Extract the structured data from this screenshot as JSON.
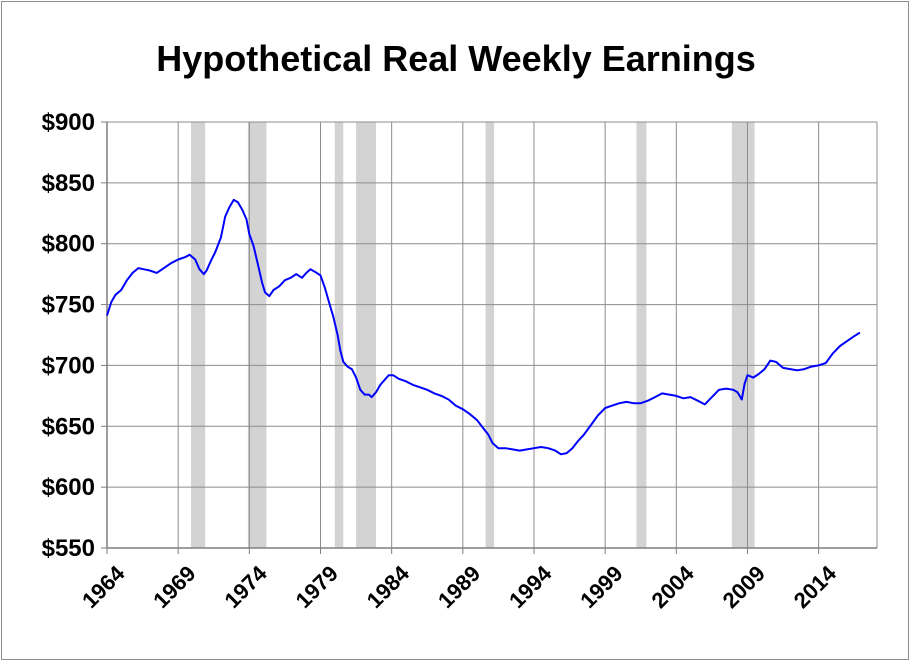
{
  "chart_data": {
    "type": "line",
    "title": "Hypothetical Real Weekly Earnings",
    "xlabel": "",
    "ylabel": "",
    "xlim": [
      1964,
      2018.1
    ],
    "ylim": [
      550,
      900
    ],
    "x_ticks": [
      1964,
      1969,
      1974,
      1979,
      1984,
      1989,
      1994,
      1999,
      2004,
      2009,
      2014
    ],
    "y_ticks": [
      {
        "value": 550,
        "label": "$550"
      },
      {
        "value": 600,
        "label": "$600"
      },
      {
        "value": 650,
        "label": "$650"
      },
      {
        "value": 700,
        "label": "$700"
      },
      {
        "value": 750,
        "label": "$750"
      },
      {
        "value": 800,
        "label": "$800"
      },
      {
        "value": 850,
        "label": "$850"
      },
      {
        "value": 900,
        "label": "$900"
      }
    ],
    "grid": true,
    "line_color": "#0000ff",
    "recession_color": "#d3d3d3",
    "recessions": [
      [
        1969.9,
        1970.9
      ],
      [
        1973.9,
        1975.2
      ],
      [
        1980.0,
        1980.6
      ],
      [
        1981.5,
        1982.9
      ],
      [
        1990.6,
        1991.2
      ],
      [
        2001.2,
        2001.9
      ],
      [
        2007.9,
        2009.5
      ]
    ],
    "series": [
      {
        "values": [
          [
            1964.0,
            741
          ],
          [
            1964.3,
            752
          ],
          [
            1964.6,
            758
          ],
          [
            1965.0,
            762
          ],
          [
            1965.4,
            770
          ],
          [
            1965.8,
            776
          ],
          [
            1966.2,
            780
          ],
          [
            1966.6,
            779
          ],
          [
            1967.0,
            778
          ],
          [
            1967.5,
            776
          ],
          [
            1968.0,
            780
          ],
          [
            1968.5,
            784
          ],
          [
            1969.0,
            787
          ],
          [
            1969.5,
            789
          ],
          [
            1969.8,
            791
          ],
          [
            1970.2,
            787
          ],
          [
            1970.5,
            779
          ],
          [
            1970.8,
            775
          ],
          [
            1971.0,
            778
          ],
          [
            1971.3,
            786
          ],
          [
            1971.6,
            793
          ],
          [
            1972.0,
            805
          ],
          [
            1972.3,
            822
          ],
          [
            1972.6,
            830
          ],
          [
            1972.9,
            836
          ],
          [
            1973.2,
            834
          ],
          [
            1973.5,
            828
          ],
          [
            1973.8,
            820
          ],
          [
            1974.0,
            808
          ],
          [
            1974.3,
            798
          ],
          [
            1974.6,
            783
          ],
          [
            1974.9,
            768
          ],
          [
            1975.1,
            760
          ],
          [
            1975.4,
            757
          ],
          [
            1975.7,
            762
          ],
          [
            1976.1,
            765
          ],
          [
            1976.5,
            770
          ],
          [
            1976.9,
            772
          ],
          [
            1977.3,
            775
          ],
          [
            1977.7,
            772
          ],
          [
            1978.0,
            776
          ],
          [
            1978.3,
            779
          ],
          [
            1978.6,
            777
          ],
          [
            1979.0,
            774
          ],
          [
            1979.3,
            764
          ],
          [
            1979.6,
            752
          ],
          [
            1979.9,
            740
          ],
          [
            1980.2,
            725
          ],
          [
            1980.4,
            712
          ],
          [
            1980.6,
            703
          ],
          [
            1980.9,
            699
          ],
          [
            1981.2,
            697
          ],
          [
            1981.5,
            690
          ],
          [
            1981.8,
            680
          ],
          [
            1982.1,
            676
          ],
          [
            1982.4,
            676
          ],
          [
            1982.6,
            674
          ],
          [
            1982.9,
            678
          ],
          [
            1983.2,
            684
          ],
          [
            1983.5,
            688
          ],
          [
            1983.8,
            692
          ],
          [
            1984.1,
            692
          ],
          [
            1984.5,
            689
          ],
          [
            1985.0,
            687
          ],
          [
            1985.5,
            684
          ],
          [
            1986.0,
            682
          ],
          [
            1986.5,
            680
          ],
          [
            1987.0,
            677
          ],
          [
            1987.5,
            675
          ],
          [
            1988.0,
            672
          ],
          [
            1988.5,
            667
          ],
          [
            1989.0,
            664
          ],
          [
            1989.5,
            660
          ],
          [
            1990.0,
            655
          ],
          [
            1990.4,
            649
          ],
          [
            1990.8,
            643
          ],
          [
            1991.1,
            636
          ],
          [
            1991.5,
            632
          ],
          [
            1992.0,
            632
          ],
          [
            1992.5,
            631
          ],
          [
            1993.0,
            630
          ],
          [
            1993.5,
            631
          ],
          [
            1994.0,
            632
          ],
          [
            1994.5,
            633
          ],
          [
            1995.0,
            632
          ],
          [
            1995.5,
            630
          ],
          [
            1995.9,
            627
          ],
          [
            1996.3,
            628
          ],
          [
            1996.7,
            632
          ],
          [
            1997.1,
            638
          ],
          [
            1997.5,
            643
          ],
          [
            1998.0,
            651
          ],
          [
            1998.5,
            659
          ],
          [
            1999.0,
            665
          ],
          [
            1999.5,
            667
          ],
          [
            2000.0,
            669
          ],
          [
            2000.5,
            670
          ],
          [
            2001.0,
            669
          ],
          [
            2001.5,
            669
          ],
          [
            2002.0,
            671
          ],
          [
            2002.5,
            674
          ],
          [
            2003.0,
            677
          ],
          [
            2003.5,
            676
          ],
          [
            2004.0,
            675
          ],
          [
            2004.5,
            673
          ],
          [
            2005.0,
            674
          ],
          [
            2005.5,
            671
          ],
          [
            2006.0,
            668
          ],
          [
            2006.5,
            674
          ],
          [
            2007.0,
            680
          ],
          [
            2007.5,
            681
          ],
          [
            2008.0,
            680
          ],
          [
            2008.3,
            678
          ],
          [
            2008.6,
            672
          ],
          [
            2008.8,
            685
          ],
          [
            2009.0,
            692
          ],
          [
            2009.4,
            690
          ],
          [
            2009.8,
            693
          ],
          [
            2010.2,
            697
          ],
          [
            2010.6,
            704
          ],
          [
            2011.0,
            703
          ],
          [
            2011.5,
            698
          ],
          [
            2012.0,
            697
          ],
          [
            2012.5,
            696
          ],
          [
            2013.0,
            697
          ],
          [
            2013.5,
            699
          ],
          [
            2014.0,
            700
          ],
          [
            2014.5,
            702
          ],
          [
            2015.0,
            710
          ],
          [
            2015.5,
            716
          ],
          [
            2016.0,
            720
          ],
          [
            2016.5,
            724
          ],
          [
            2016.9,
            727
          ]
        ]
      }
    ]
  }
}
